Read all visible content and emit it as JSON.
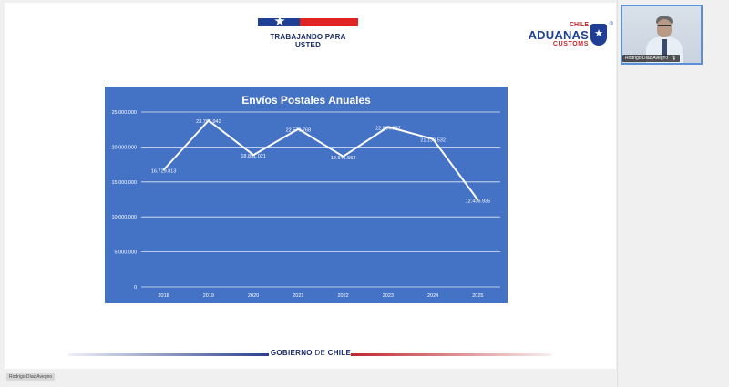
{
  "slide": {
    "slogan": "TRABAJANDO PARA USTED",
    "aduanas": {
      "chile": "CHILE",
      "name": "ADUANAS",
      "customs": "CUSTOMS",
      "registered": "®"
    },
    "footer": {
      "gobierno": "GOBIERNO",
      "de": "DE",
      "chile": "CHILE"
    },
    "colors": {
      "chart_bg": "#4472c4",
      "navy": "#1f3f95",
      "red": "#e02424"
    }
  },
  "presenter_label": "Rodrigo Díaz Avegno",
  "video_tile": {
    "name": "Rodrigo Díaz Avegno",
    "mic_icon": "mic-icon",
    "mic_glyph": "🎙"
  },
  "chart_data": {
    "type": "line",
    "title": "Envíos Postales Anuales",
    "categories": [
      "2018",
      "2019",
      "2020",
      "2021",
      "2022",
      "2023",
      "2024",
      "2025"
    ],
    "values": [
      16729813,
      23795942,
      18851021,
      22570768,
      18641562,
      22864897,
      21130532,
      12436935
    ],
    "value_labels": [
      "16.729.813",
      "23.795.942",
      "18.851.021",
      "22.570.768",
      "18.641.562",
      "22.864.897",
      "21.130.532",
      "12.436.935"
    ],
    "ylim": [
      0,
      25000000
    ],
    "y_ticks": [
      0,
      5000000,
      10000000,
      15000000,
      20000000,
      25000000
    ],
    "y_tick_labels": [
      "0",
      "5.000.000",
      "10.000.000",
      "15.000.000",
      "20.000.000",
      "25.000.000"
    ],
    "grid": true,
    "line_color": "#ffffff"
  }
}
